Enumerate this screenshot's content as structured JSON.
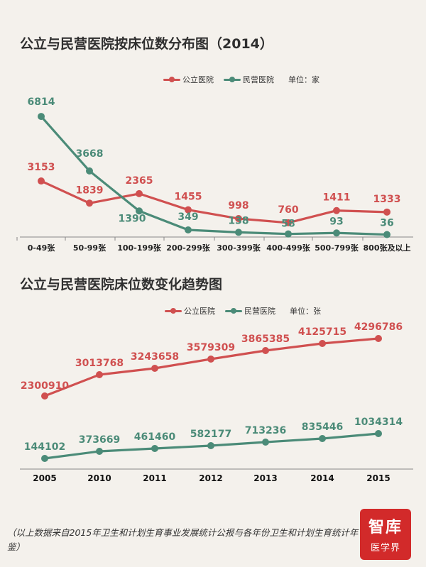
{
  "colors": {
    "public": "#d05050",
    "private": "#4b8b78",
    "axis": "#888888"
  },
  "chart1_title": "公立与民营医院按床位数分布图（2014）",
  "chart2_title": "公立与民营医院床位数变化趋势图",
  "chart1_legend": {
    "public": "公立医院",
    "private": "民营医院",
    "unit": "单位：家"
  },
  "chart2_legend": {
    "public": "公立医院",
    "private": "民营医院",
    "unit": "单位：张"
  },
  "chart_data": [
    {
      "type": "line",
      "title": "公立与民营医院按床位数分布图（2014）",
      "categories": [
        "0-49张",
        "50-99张",
        "100-199张",
        "200-299张",
        "300-399张",
        "400-499张",
        "500-799张",
        "800张及以上"
      ],
      "series": [
        {
          "name": "公立医院",
          "values": [
            3153,
            1839,
            2365,
            1455,
            998,
            760,
            1411,
            1333
          ],
          "color": "#d05050"
        },
        {
          "name": "民营医院",
          "values": [
            6814,
            3668,
            1390,
            349,
            138,
            58,
            93,
            36
          ],
          "color": "#4b8b78"
        }
      ],
      "unit": "单位：家",
      "grid": false
    },
    {
      "type": "line",
      "title": "公立与民营医院床位数变化趋势图",
      "categories": [
        "2005",
        "2010",
        "2011",
        "2012",
        "2013",
        "2014",
        "2015"
      ],
      "series": [
        {
          "name": "公立医院",
          "values": [
            2300910,
            3013768,
            3243658,
            3579309,
            3865385,
            4125715,
            4296786
          ],
          "color": "#d05050"
        },
        {
          "name": "民营医院",
          "values": [
            144102,
            373669,
            461460,
            582177,
            713236,
            835446,
            1034314
          ],
          "color": "#4b8b78"
        }
      ],
      "unit": "单位：张",
      "grid": false
    }
  ],
  "footer": "（以上数据来自2015年卫生和计划生育事业发展统计公报与各年份卫生和计划生育统计年鉴）",
  "logo": {
    "main": "智库",
    "sub": "医学界"
  }
}
